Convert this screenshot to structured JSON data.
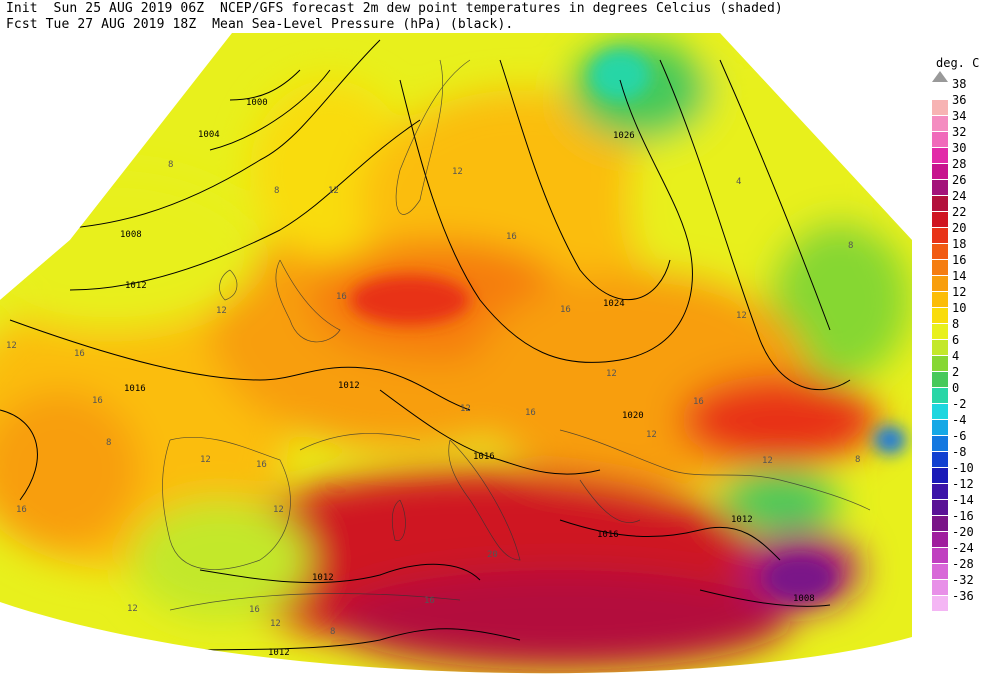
{
  "header": {
    "line1": "Init  Sun 25 AUG 2019 06Z  NCEP/GFS forecast 2m dew point temperatures in degrees Celcius (shaded)",
    "line2": "Fcst Tue 27 AUG 2019 18Z  Mean Sea-Level Pressure (hPa) (black)."
  },
  "legend": {
    "unit": "deg. C",
    "top_label": "38",
    "entries": [
      {
        "label": "36",
        "color": "#f7b3b3"
      },
      {
        "label": "34",
        "color": "#f48cc0"
      },
      {
        "label": "32",
        "color": "#f06aba"
      },
      {
        "label": "30",
        "color": "#e22aa8"
      },
      {
        "label": "28",
        "color": "#c7148e"
      },
      {
        "label": "26",
        "color": "#a4127a"
      },
      {
        "label": "24",
        "color": "#b3103c"
      },
      {
        "label": "22",
        "color": "#cf1421"
      },
      {
        "label": "20",
        "color": "#e83318"
      },
      {
        "label": "18",
        "color": "#f15a13"
      },
      {
        "label": "16",
        "color": "#f57d10"
      },
      {
        "label": "14",
        "color": "#f89e0c"
      },
      {
        "label": "12",
        "color": "#fbbd08"
      },
      {
        "label": "10",
        "color": "#f9dc0a"
      },
      {
        "label": "8",
        "color": "#e8f01c"
      },
      {
        "label": "6",
        "color": "#c3e829"
      },
      {
        "label": "4",
        "color": "#86d733"
      },
      {
        "label": "2",
        "color": "#47c95a"
      },
      {
        "label": "0",
        "color": "#28d6a6"
      },
      {
        "label": "-2",
        "color": "#1ed6df"
      },
      {
        "label": "-4",
        "color": "#16a8e6"
      },
      {
        "label": "-6",
        "color": "#1478e0"
      },
      {
        "label": "-8",
        "color": "#1240d0"
      },
      {
        "label": "-10",
        "color": "#1a1ab8"
      },
      {
        "label": "-12",
        "color": "#3c14a8"
      },
      {
        "label": "-14",
        "color": "#5a1296"
      },
      {
        "label": "-16",
        "color": "#7a1488"
      },
      {
        "label": "-20",
        "color": "#a01e9e"
      },
      {
        "label": "-24",
        "color": "#c040c0"
      },
      {
        "label": "-28",
        "color": "#d868d8"
      },
      {
        "label": "-32",
        "color": "#e890e8"
      },
      {
        "label": "-36",
        "color": "#f4b6f4"
      }
    ]
  },
  "isobar_labels": [
    "1000",
    "1004",
    "1008",
    "1012",
    "1016",
    "1012",
    "1016",
    "1020",
    "1024",
    "1026",
    "1016",
    "1012",
    "1012",
    "1008",
    "1012"
  ],
  "dewpoint_labels": [
    "8",
    "8",
    "12",
    "12",
    "16",
    "16",
    "16",
    "12",
    "8",
    "12",
    "16",
    "16",
    "12",
    "12",
    "16",
    "16",
    "12",
    "12",
    "12",
    "20",
    "16",
    "12",
    "16",
    "12",
    "8",
    "4",
    "8",
    "12",
    "16",
    "12",
    "16",
    "8"
  ]
}
